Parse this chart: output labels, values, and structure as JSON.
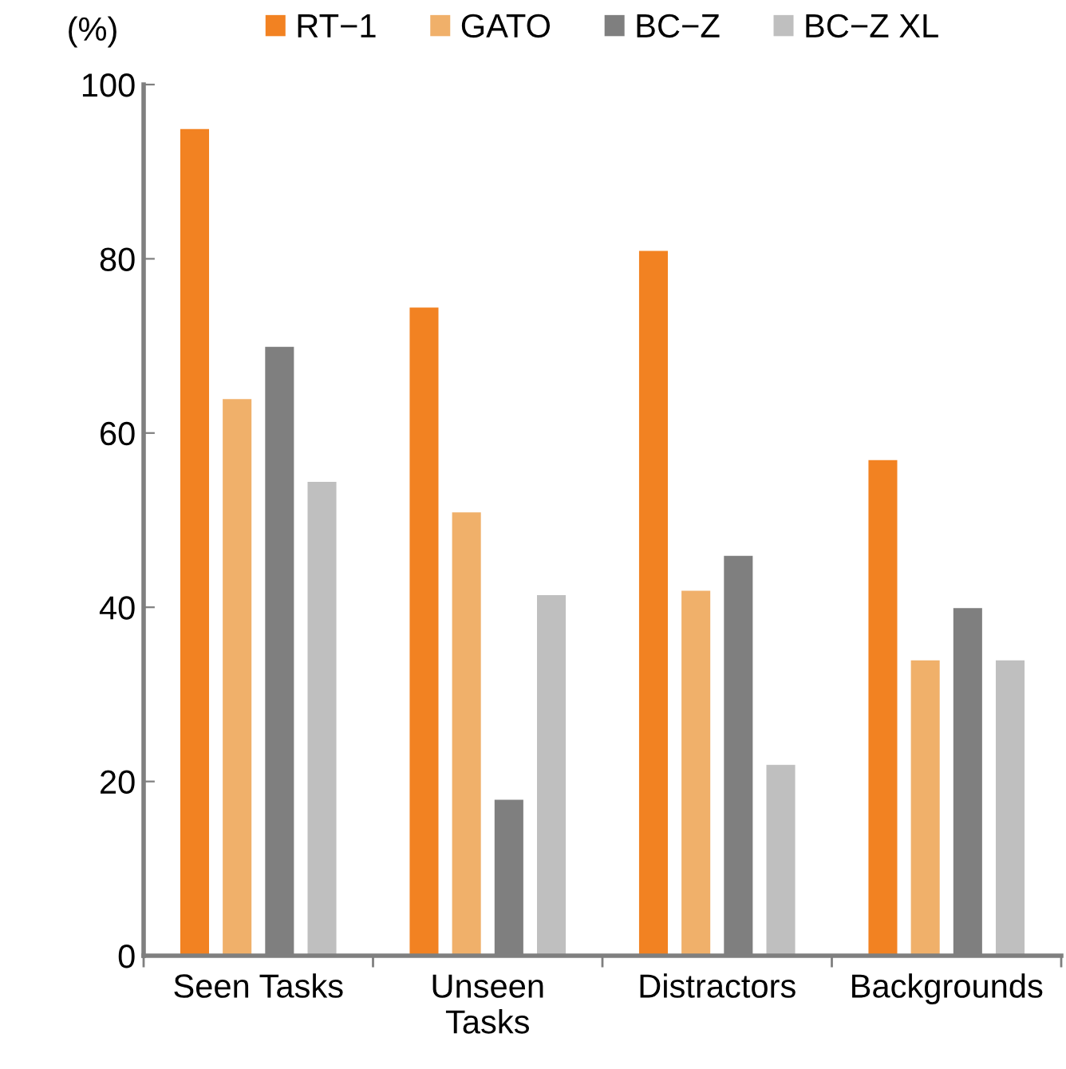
{
  "chart_data": {
    "type": "bar",
    "ylabel": "(%)",
    "categories": [
      "Seen Tasks",
      "Unseen\nTasks",
      "Distractors",
      "Backgrounds"
    ],
    "series": [
      {
        "name": "RT−1",
        "color": "#f28222",
        "values": [
          95,
          74.5,
          81,
          57
        ]
      },
      {
        "name": "GATO",
        "color": "#f0b06a",
        "values": [
          64,
          51,
          42,
          34
        ]
      },
      {
        "name": "BC−Z",
        "color": "#7f7f7f",
        "values": [
          70,
          18,
          46,
          40
        ]
      },
      {
        "name": "BC−Z XL",
        "color": "#bfbfbf",
        "values": [
          54.5,
          41.5,
          22,
          34
        ]
      }
    ],
    "ylim": [
      0,
      100
    ],
    "yticks": [
      0,
      20,
      40,
      60,
      80,
      100
    ],
    "grid": false,
    "legend": "top"
  }
}
